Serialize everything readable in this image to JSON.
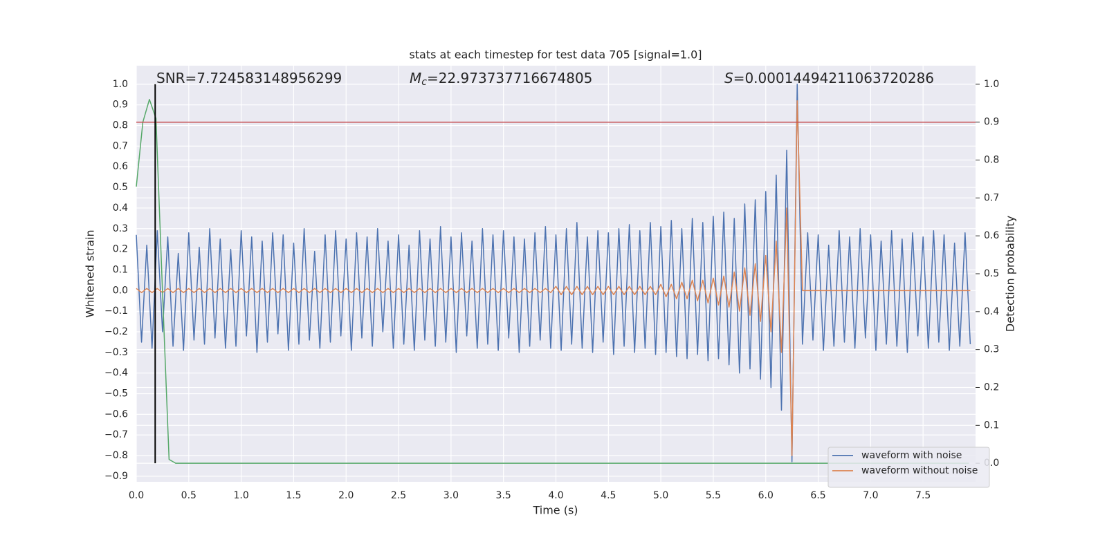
{
  "chart_data": {
    "type": "line",
    "title": "stats at each timestep for test data 705 [signal=1.0]",
    "xlabel": "Time (s)",
    "ylabel": "Whitened strain",
    "y2label": "Detection probability",
    "annotations": [
      {
        "text": "SNR=7.724583148956299"
      },
      {
        "symbol": "M",
        "subscript": "c",
        "text": "=22.973737716674805"
      },
      {
        "symbol": "S",
        "text": "=0.00014494211063720286"
      }
    ],
    "xlim": [
      0,
      8
    ],
    "xticks": [
      {
        "value": 0,
        "label": "0.0"
      },
      0.5,
      {
        "value": 1,
        "label": "1.0"
      },
      1.5,
      {
        "value": 2,
        "label": "2.0"
      },
      2.5,
      {
        "value": 3,
        "label": "3.0"
      },
      3.5,
      {
        "value": 4,
        "label": "4.0"
      },
      4.5,
      {
        "value": 5,
        "label": "5.0"
      },
      5.5,
      {
        "value": 6,
        "label": "6.0"
      },
      6.5,
      {
        "value": 7,
        "label": "7.0"
      },
      7.5
    ],
    "ylim": [
      -0.927,
      1.09
    ],
    "yticks": [
      {
        "value": -0.9,
        "label": "−0.9"
      },
      {
        "value": -0.8,
        "label": "−0.8"
      },
      {
        "value": -0.7,
        "label": "−0.7"
      },
      {
        "value": -0.6,
        "label": "−0.6"
      },
      {
        "value": -0.5,
        "label": "−0.5"
      },
      {
        "value": -0.4,
        "label": "−0.4"
      },
      {
        "value": -0.3,
        "label": "−0.3"
      },
      {
        "value": -0.2,
        "label": "−0.2"
      },
      {
        "value": -0.1,
        "label": "−0.1"
      },
      {
        "value": 0,
        "label": "0.0"
      },
      0.1,
      0.2,
      0.3,
      0.4,
      0.5,
      0.6,
      0.7,
      0.8,
      0.9,
      {
        "value": 1,
        "label": "1.0"
      }
    ],
    "y2lim": [
      -0.049,
      1.049
    ],
    "y2ticks": [
      {
        "value": 0,
        "label": "0.0"
      },
      0.1,
      0.2,
      0.3,
      0.4,
      0.5,
      0.6,
      0.7,
      0.8,
      0.9,
      {
        "value": 1,
        "label": "1.0"
      }
    ],
    "grid": true,
    "legend": "lower right",
    "x": [
      0,
      0.05,
      0.1,
      0.15,
      0.2,
      0.25,
      0.3,
      0.35,
      0.4,
      0.45,
      0.5,
      0.55,
      0.6,
      0.65,
      0.7,
      0.75,
      0.8,
      0.85,
      0.9,
      0.95,
      1,
      1.05,
      1.1,
      1.15,
      1.2,
      1.25,
      1.3,
      1.35,
      1.4,
      1.45,
      1.5,
      1.55,
      1.6,
      1.65,
      1.7,
      1.75,
      1.8,
      1.85,
      1.9,
      1.95,
      2,
      2.05,
      2.1,
      2.15,
      2.2,
      2.25,
      2.3,
      2.35,
      2.4,
      2.45,
      2.5,
      2.55,
      2.6,
      2.65,
      2.7,
      2.75,
      2.8,
      2.85,
      2.9,
      2.95,
      3,
      3.05,
      3.1,
      3.15,
      3.2,
      3.25,
      3.3,
      3.35,
      3.4,
      3.45,
      3.5,
      3.55,
      3.6,
      3.65,
      3.7,
      3.75,
      3.8,
      3.85,
      3.9,
      3.95,
      4,
      4.05,
      4.1,
      4.15,
      4.2,
      4.25,
      4.3,
      4.35,
      4.4,
      4.45,
      4.5,
      4.55,
      4.6,
      4.65,
      4.7,
      4.75,
      4.8,
      4.85,
      4.9,
      4.95,
      5,
      5.05,
      5.1,
      5.15,
      5.2,
      5.25,
      5.3,
      5.35,
      5.4,
      5.45,
      5.5,
      5.55,
      5.6,
      5.65,
      5.7,
      5.75,
      5.8,
      5.85,
      5.9,
      5.95,
      6,
      6.05,
      6.1,
      6.15,
      6.2,
      6.25,
      6.3,
      6.35,
      6.4,
      6.45,
      6.5,
      6.55,
      6.6,
      6.65,
      6.7,
      6.75,
      6.8,
      6.85,
      6.9,
      6.95,
      7,
      7.05,
      7.1,
      7.15,
      7.2,
      7.25,
      7.3,
      7.35,
      7.4,
      7.45,
      7.5,
      7.55,
      7.6,
      7.65,
      7.7,
      7.75,
      7.8,
      7.85,
      7.9,
      7.95
    ],
    "series": [
      {
        "name": "waveform with noise",
        "color": "#4c72b0",
        "values": [
          0.27,
          -0.25,
          0.22,
          -0.28,
          0.29,
          -0.2,
          0.26,
          -0.27,
          0.18,
          -0.29,
          0.28,
          -0.24,
          0.21,
          -0.26,
          0.3,
          -0.23,
          0.25,
          -0.28,
          0.2,
          -0.27,
          0.29,
          -0.22,
          0.26,
          -0.3,
          0.24,
          -0.25,
          0.28,
          -0.21,
          0.27,
          -0.29,
          0.23,
          -0.26,
          0.3,
          -0.24,
          0.19,
          -0.28,
          0.27,
          -0.25,
          0.29,
          -0.22,
          0.25,
          -0.29,
          0.28,
          -0.23,
          0.26,
          -0.27,
          0.3,
          -0.2,
          0.24,
          -0.28,
          0.27,
          -0.26,
          0.22,
          -0.29,
          0.29,
          -0.24,
          0.25,
          -0.27,
          0.31,
          -0.25,
          0.26,
          -0.3,
          0.28,
          -0.22,
          0.24,
          -0.28,
          0.3,
          -0.26,
          0.27,
          -0.29,
          0.29,
          -0.23,
          0.26,
          -0.3,
          0.25,
          -0.27,
          0.28,
          -0.24,
          0.31,
          -0.28,
          0.27,
          -0.29,
          0.3,
          -0.26,
          0.33,
          -0.28,
          0.26,
          -0.3,
          0.29,
          -0.25,
          0.28,
          -0.31,
          0.3,
          -0.27,
          0.32,
          -0.3,
          0.29,
          -0.28,
          0.33,
          -0.31,
          0.31,
          -0.3,
          0.34,
          -0.32,
          0.3,
          -0.33,
          0.35,
          -0.31,
          0.33,
          -0.34,
          0.36,
          -0.33,
          0.38,
          -0.36,
          0.35,
          -0.4,
          0.42,
          -0.38,
          0.44,
          -0.43,
          0.48,
          -0.47,
          0.56,
          -0.58,
          0.68,
          -0.83,
          1.0,
          -0.26,
          0.28,
          -0.24,
          0.27,
          -0.29,
          0.22,
          -0.27,
          0.29,
          -0.25,
          0.26,
          -0.28,
          0.3,
          -0.23,
          0.27,
          -0.29,
          0.24,
          -0.26,
          0.29,
          -0.27,
          0.25,
          -0.3,
          0.28,
          -0.22,
          0.26,
          -0.28,
          0.29,
          -0.25,
          0.27,
          -0.29,
          0.23,
          -0.27,
          0.28,
          -0.26
        ]
      },
      {
        "name": "waveform without noise",
        "color": "#dd8452",
        "values": [
          0.01,
          -0.01,
          0.01,
          -0.01,
          0.01,
          -0.01,
          0.01,
          -0.01,
          0.01,
          -0.01,
          0.01,
          -0.01,
          0.01,
          -0.01,
          0.01,
          -0.01,
          0.01,
          -0.01,
          0.01,
          -0.01,
          0.01,
          -0.01,
          0.01,
          -0.01,
          0.01,
          -0.01,
          0.01,
          -0.01,
          0.01,
          -0.01,
          0.01,
          -0.01,
          0.01,
          -0.01,
          0.01,
          -0.01,
          0.01,
          -0.01,
          0.01,
          -0.01,
          0.01,
          -0.01,
          0.01,
          -0.01,
          0.01,
          -0.01,
          0.01,
          -0.01,
          0.01,
          -0.01,
          0.01,
          -0.01,
          0.01,
          -0.01,
          0.01,
          -0.01,
          0.01,
          -0.01,
          0.01,
          -0.01,
          0.01,
          -0.01,
          0.01,
          -0.01,
          0.01,
          -0.01,
          0.01,
          -0.01,
          0.01,
          -0.01,
          0.01,
          -0.01,
          0.01,
          -0.01,
          0.01,
          -0.01,
          0.01,
          -0.01,
          0.01,
          -0.01,
          0.02,
          -0.02,
          0.02,
          -0.02,
          0.02,
          -0.02,
          0.02,
          -0.02,
          0.02,
          -0.02,
          0.02,
          -0.02,
          0.02,
          -0.02,
          0.02,
          -0.02,
          0.02,
          -0.02,
          0.02,
          -0.02,
          0.03,
          -0.03,
          0.03,
          -0.04,
          0.04,
          -0.04,
          0.05,
          -0.05,
          0.05,
          -0.06,
          0.06,
          -0.07,
          0.07,
          -0.08,
          0.09,
          -0.1,
          0.11,
          -0.12,
          0.13,
          -0.15,
          0.17,
          -0.2,
          0.24,
          -0.3,
          0.4,
          -0.8,
          0.92,
          0,
          0,
          0,
          0,
          0,
          0,
          0,
          0,
          0,
          0,
          0,
          0,
          0,
          0,
          0,
          0,
          0,
          0,
          0,
          0,
          0,
          0,
          0,
          0,
          0,
          0,
          0,
          0,
          0,
          0,
          0,
          0,
          0
        ]
      },
      {
        "color": "#55a868",
        "axis": "y2",
        "x": [
          0,
          0.0625,
          0.125,
          0.1875,
          0.25,
          0.3125,
          0.375,
          7.9375
        ],
        "values": [
          0.73,
          0.9,
          0.96,
          0.91,
          0.45,
          0.01,
          0,
          0
        ]
      }
    ],
    "hline": {
      "y2": 0.9,
      "color": "#c44e52"
    },
    "vline": {
      "x": 0.18,
      "y2range": [
        0,
        1
      ],
      "color": "#000000"
    }
  }
}
